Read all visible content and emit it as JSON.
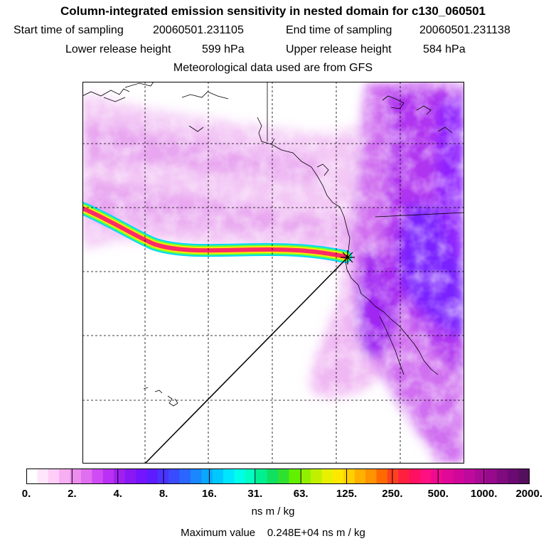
{
  "header": {
    "title": "Column-integrated emission sensitivity in nested domain for c130_060501",
    "start_label": "Start time of sampling",
    "start_value": "20060501.231105",
    "end_label": "End time of sampling",
    "end_value": "20060501.231138",
    "lower_label": "Lower release height",
    "lower_value": "599 hPa",
    "upper_label": "Upper release height",
    "upper_value": "584 hPa",
    "met_line": "Meteorological data used are from GFS"
  },
  "map": {
    "release_marker_icon": "star-burst-icon",
    "colors": {
      "magenta_light": "#f3c8f5",
      "magenta": "#e07cf0",
      "violet": "#b030f0",
      "blue_violet": "#7a20ff",
      "plume_core": "#ff2a6a",
      "plume_edge_yellow": "#ffe800",
      "plume_edge_cyan": "#00e8ff"
    }
  },
  "colorbar": {
    "labels": [
      "0.",
      "2.",
      "4.",
      "8.",
      "16.",
      "31.",
      "63.",
      "125.",
      "250.",
      "500.",
      "1000.",
      "2000."
    ],
    "colors": [
      "#ffffff",
      "#ffe6fb",
      "#ffcdf7",
      "#f7aef2",
      "#ec8cec",
      "#e06ef0",
      "#cf4cf5",
      "#bb30f5",
      "#a020f0",
      "#8a18f4",
      "#7415ff",
      "#5e1bff",
      "#4a33ff",
      "#3a4bff",
      "#2a66ff",
      "#1a86ff",
      "#0aa8ff",
      "#00c8ff",
      "#00e6ff",
      "#00ffe8",
      "#00ffc0",
      "#00f090",
      "#10e060",
      "#30e030",
      "#60f000",
      "#90f000",
      "#c0f000",
      "#e8f000",
      "#ffe800",
      "#ffd000",
      "#ffb000",
      "#ff9200",
      "#ff6a00",
      "#ff4020",
      "#ff2040",
      "#ff1060",
      "#ff1080",
      "#f00a90",
      "#e00898",
      "#d0089a",
      "#bd0a9c",
      "#aa0a96",
      "#960a8c",
      "#800a80",
      "#6a0a72",
      "#54105c"
    ],
    "units": "ns m / kg",
    "max_label": "Maximum value",
    "max_value": "0.248E+04 ns m / kg"
  }
}
